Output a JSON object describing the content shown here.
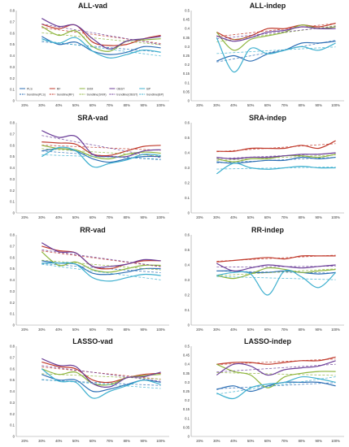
{
  "colors": {
    "PLS": "#2e6fb5",
    "RF": "#c0392b",
    "SVM": "#8db43c",
    "OBST": "#6c3f99",
    "BP": "#3fb0cf",
    "axis": "#999999",
    "grid": "#e6e6e6",
    "title": "#1a1a1a"
  },
  "legend": {
    "entries": [
      "PLS",
      "RF",
      "SVM",
      "OBST",
      "BP",
      "trendline(PLS)",
      "trendline(RF)",
      "trendline(SVM)",
      "trendline(OBST)",
      "trendline(BP)"
    ]
  },
  "chart_data": [
    {
      "type": "line",
      "title": "ALL-vad",
      "categories": [
        "20%",
        "30%",
        "40%",
        "50%",
        "60%",
        "70%",
        "80%",
        "90%",
        "100%"
      ],
      "ylim": [
        0,
        0.8
      ],
      "yticks": [
        "0",
        "0.1",
        "0.2",
        "0.3",
        "0.4",
        "0.5",
        "0.6",
        "0.7",
        "0.8"
      ],
      "grid": false,
      "legend_position": "bottom",
      "series": [
        {
          "name": "PLS",
          "values": [
            null,
            0.57,
            0.5,
            0.52,
            0.44,
            0.41,
            0.43,
            0.48,
            0.47
          ]
        },
        {
          "name": "RF",
          "values": [
            null,
            0.68,
            0.64,
            0.67,
            0.52,
            0.49,
            0.5,
            0.55,
            0.58
          ]
        },
        {
          "name": "SVM",
          "values": [
            null,
            0.66,
            0.58,
            0.62,
            0.48,
            0.44,
            0.53,
            0.54,
            0.55
          ]
        },
        {
          "name": "OBST",
          "values": [
            null,
            0.73,
            0.66,
            0.67,
            0.55,
            0.46,
            0.53,
            0.55,
            0.57
          ]
        },
        {
          "name": "BP",
          "values": [
            null,
            0.55,
            0.51,
            0.56,
            0.44,
            0.38,
            0.41,
            0.45,
            0.43
          ]
        }
      ]
    },
    {
      "type": "line",
      "title": "ALL-indep",
      "categories": [
        "20%",
        "30%",
        "40%",
        "50%",
        "60%",
        "70%",
        "80%",
        "90%",
        "100%"
      ],
      "ylim": [
        0,
        0.5
      ],
      "yticks": [
        "0",
        "0.05",
        "0.1",
        "0.15",
        "0.2",
        "0.25",
        "0.3",
        "0.35",
        "0.4",
        "0.45",
        "0.5"
      ],
      "grid": false,
      "series": [
        {
          "name": "PLS",
          "values": [
            null,
            0.22,
            0.25,
            0.22,
            0.26,
            0.28,
            0.32,
            0.32,
            0.33
          ]
        },
        {
          "name": "RF",
          "values": [
            null,
            0.38,
            0.34,
            0.36,
            0.4,
            0.4,
            0.42,
            0.41,
            0.43
          ]
        },
        {
          "name": "SVM",
          "values": [
            null,
            0.38,
            0.28,
            0.34,
            0.36,
            0.38,
            0.42,
            0.4,
            0.41
          ]
        },
        {
          "name": "OBST",
          "values": [
            null,
            0.36,
            0.33,
            0.35,
            0.38,
            0.39,
            0.41,
            0.4,
            0.4
          ]
        },
        {
          "name": "BP",
          "values": [
            null,
            0.35,
            0.16,
            0.29,
            0.26,
            0.28,
            0.3,
            0.28,
            0.32
          ]
        }
      ]
    },
    {
      "type": "line",
      "title": "SRA-vad",
      "categories": [
        "20%",
        "30%",
        "40%",
        "50%",
        "60%",
        "70%",
        "80%",
        "90%",
        "100%"
      ],
      "ylim": [
        0,
        0.8
      ],
      "yticks": [
        "0",
        "0.1",
        "0.2",
        "0.3",
        "0.4",
        "0.5",
        "0.6",
        "0.7",
        "0.8"
      ],
      "grid": false,
      "series": [
        {
          "name": "PLS",
          "values": [
            null,
            0.55,
            0.57,
            0.55,
            0.48,
            0.45,
            0.48,
            0.5,
            0.5
          ]
        },
        {
          "name": "RF",
          "values": [
            null,
            0.63,
            0.62,
            0.61,
            0.52,
            0.51,
            0.55,
            0.59,
            0.6
          ]
        },
        {
          "name": "SVM",
          "values": [
            null,
            0.6,
            0.57,
            0.56,
            0.5,
            0.48,
            0.52,
            0.54,
            0.53
          ]
        },
        {
          "name": "OBST",
          "values": [
            null,
            0.73,
            0.67,
            0.68,
            0.52,
            0.5,
            0.5,
            0.55,
            0.56
          ]
        },
        {
          "name": "BP",
          "values": [
            null,
            0.5,
            0.58,
            0.55,
            0.41,
            0.44,
            0.47,
            0.52,
            0.51
          ]
        }
      ]
    },
    {
      "type": "line",
      "title": "SRA-indep",
      "categories": [
        "20%",
        "30%",
        "40%",
        "50%",
        "60%",
        "70%",
        "80%",
        "90%",
        "100%"
      ],
      "ylim": [
        0,
        0.6
      ],
      "yticks": [
        "0",
        "0.1",
        "0.2",
        "0.3",
        "0.4",
        "0.5",
        "0.6"
      ],
      "grid": false,
      "series": [
        {
          "name": "PLS",
          "values": [
            null,
            0.34,
            0.33,
            0.34,
            0.35,
            0.35,
            0.37,
            0.36,
            0.37
          ]
        },
        {
          "name": "RF",
          "values": [
            null,
            0.41,
            0.41,
            0.43,
            0.43,
            0.43,
            0.45,
            0.43,
            0.48
          ]
        },
        {
          "name": "SVM",
          "values": [
            null,
            0.36,
            0.34,
            0.36,
            0.36,
            0.38,
            0.38,
            0.37,
            0.39
          ]
        },
        {
          "name": "OBST",
          "values": [
            null,
            0.37,
            0.36,
            0.37,
            0.37,
            0.38,
            0.39,
            0.39,
            0.4
          ]
        },
        {
          "name": "BP",
          "values": [
            null,
            0.26,
            0.33,
            0.3,
            0.29,
            0.3,
            0.31,
            0.3,
            0.3
          ]
        }
      ]
    },
    {
      "type": "line",
      "title": "RR-vad",
      "categories": [
        "20%",
        "30%",
        "40%",
        "50%",
        "60%",
        "70%",
        "80%",
        "90%",
        "100%"
      ],
      "ylim": [
        0,
        0.8
      ],
      "yticks": [
        "0",
        "0.1",
        "0.2",
        "0.3",
        "0.4",
        "0.5",
        "0.6",
        "0.7",
        "0.8"
      ],
      "grid": false,
      "series": [
        {
          "name": "PLS",
          "values": [
            null,
            0.57,
            0.55,
            0.54,
            0.46,
            0.45,
            0.47,
            0.5,
            0.5
          ]
        },
        {
          "name": "RF",
          "values": [
            null,
            0.7,
            0.66,
            0.64,
            0.52,
            0.5,
            0.54,
            0.57,
            0.57
          ]
        },
        {
          "name": "SVM",
          "values": [
            null,
            0.65,
            0.53,
            0.56,
            0.49,
            0.47,
            0.5,
            0.53,
            0.53
          ]
        },
        {
          "name": "OBST",
          "values": [
            null,
            0.73,
            0.65,
            0.64,
            0.52,
            0.52,
            0.54,
            0.58,
            0.57
          ]
        },
        {
          "name": "BP",
          "values": [
            null,
            0.55,
            0.55,
            0.54,
            0.42,
            0.39,
            0.42,
            0.45,
            0.44
          ]
        }
      ]
    },
    {
      "type": "line",
      "title": "RR-indep",
      "categories": [
        "20%",
        "30%",
        "40%",
        "50%",
        "60%",
        "70%",
        "80%",
        "90%",
        "100%"
      ],
      "ylim": [
        0,
        0.6
      ],
      "yticks": [
        "0",
        "0.1",
        "0.2",
        "0.3",
        "0.4",
        "0.5",
        "0.6"
      ],
      "grid": false,
      "series": [
        {
          "name": "PLS",
          "values": [
            null,
            0.36,
            0.36,
            0.35,
            0.35,
            0.36,
            0.35,
            0.34,
            0.35
          ]
        },
        {
          "name": "RF",
          "values": [
            null,
            0.42,
            0.43,
            0.44,
            0.45,
            0.44,
            0.46,
            0.46,
            0.46
          ]
        },
        {
          "name": "SVM",
          "values": [
            null,
            0.33,
            0.31,
            0.34,
            0.38,
            0.37,
            0.35,
            0.36,
            0.37
          ]
        },
        {
          "name": "OBST",
          "values": [
            null,
            0.41,
            0.36,
            0.38,
            0.4,
            0.39,
            0.38,
            0.39,
            0.4
          ]
        },
        {
          "name": "BP",
          "values": [
            null,
            0.33,
            0.35,
            0.34,
            0.2,
            0.36,
            0.32,
            0.25,
            0.35
          ]
        }
      ]
    },
    {
      "type": "line",
      "title": "LASSO-vad",
      "categories": [
        "20%",
        "30%",
        "40%",
        "50%",
        "60%",
        "70%",
        "80%",
        "90%",
        "100%"
      ],
      "ylim": [
        0,
        0.8
      ],
      "yticks": [
        "0",
        "0.1",
        "0.2",
        "0.3",
        "0.4",
        "0.5",
        "0.6",
        "0.7",
        "0.8"
      ],
      "grid": false,
      "series": [
        {
          "name": "PLS",
          "values": [
            null,
            0.55,
            0.5,
            0.5,
            0.4,
            0.42,
            0.46,
            0.5,
            0.48
          ]
        },
        {
          "name": "RF",
          "values": [
            null,
            0.66,
            0.62,
            0.6,
            0.5,
            0.48,
            0.52,
            0.55,
            0.56
          ]
        },
        {
          "name": "SVM",
          "values": [
            null,
            0.6,
            0.55,
            0.57,
            0.47,
            0.46,
            0.52,
            0.54,
            0.55
          ]
        },
        {
          "name": "OBST",
          "values": [
            null,
            0.69,
            0.63,
            0.62,
            0.47,
            0.44,
            0.52,
            0.53,
            0.57
          ]
        },
        {
          "name": "BP",
          "values": [
            null,
            0.6,
            0.49,
            0.48,
            0.34,
            0.4,
            0.45,
            0.5,
            0.46
          ]
        }
      ]
    },
    {
      "type": "line",
      "title": "LASSO-indep",
      "categories": [
        "20%",
        "30%",
        "40%",
        "50%",
        "60%",
        "70%",
        "80%",
        "90%",
        "100%"
      ],
      "ylim": [
        0,
        0.5
      ],
      "yticks": [
        "0",
        "0.05",
        "0.1",
        "0.15",
        "0.2",
        "0.25",
        "0.3",
        "0.35",
        "0.4",
        "0.45",
        "0.5"
      ],
      "grid": false,
      "series": [
        {
          "name": "PLS",
          "values": [
            null,
            0.26,
            0.28,
            0.25,
            0.28,
            0.3,
            0.3,
            0.3,
            0.28
          ]
        },
        {
          "name": "RF",
          "values": [
            null,
            0.4,
            0.41,
            0.41,
            0.4,
            0.41,
            0.42,
            0.42,
            0.44
          ]
        },
        {
          "name": "SVM",
          "values": [
            null,
            0.4,
            0.36,
            0.34,
            0.27,
            0.33,
            0.35,
            0.36,
            0.36
          ]
        },
        {
          "name": "OBST",
          "values": [
            null,
            0.34,
            0.4,
            0.39,
            0.34,
            0.37,
            0.38,
            0.39,
            0.42
          ]
        },
        {
          "name": "BP",
          "values": [
            null,
            0.24,
            0.21,
            0.27,
            0.29,
            0.3,
            0.33,
            0.32,
            0.3
          ]
        }
      ]
    }
  ]
}
